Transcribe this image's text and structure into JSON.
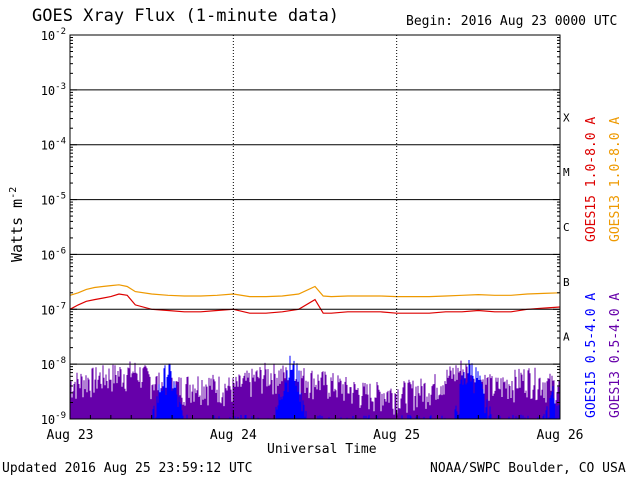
{
  "header": {
    "title": "GOES Xray Flux (1-minute data)",
    "begin": "Begin:  2016 Aug 23 0000 UTC"
  },
  "footer": {
    "updated": "Updated 2016 Aug 25 23:59:12 UTC",
    "credit": "NOAA/SWPC Boulder, CO USA"
  },
  "colors": {
    "goes15_long": "#dd0000",
    "goes13_long": "#ee9900",
    "goes15_short": "#0000ff",
    "goes13_short": "#6600aa"
  },
  "chart_data": {
    "type": "line",
    "title": "GOES Xray Flux (1-minute data)",
    "xlabel": "Universal Time",
    "ylabel": "Watts m",
    "ylabel_sup": "-2",
    "yscale": "log",
    "ylim": [
      1e-09,
      0.01
    ],
    "ytick_labels": [
      {
        "base": "10",
        "exp": "-9",
        "value": 1e-09
      },
      {
        "base": "10",
        "exp": "-8",
        "value": 1e-08
      },
      {
        "base": "10",
        "exp": "-7",
        "value": 1e-07
      },
      {
        "base": "10",
        "exp": "-6",
        "value": 1e-06
      },
      {
        "base": "10",
        "exp": "-5",
        "value": 1e-05
      },
      {
        "base": "10",
        "exp": "-4",
        "value": 0.0001
      },
      {
        "base": "10",
        "exp": "-3",
        "value": 0.001
      },
      {
        "base": "10",
        "exp": "-2",
        "value": 0.01
      }
    ],
    "xticks": [
      "Aug 23",
      "Aug 24",
      "Aug 25",
      "Aug 26"
    ],
    "flare_classes": [
      {
        "label": "A",
        "value": 1e-08
      },
      {
        "label": "B",
        "value": 1e-07
      },
      {
        "label": "C",
        "value": 1e-06
      },
      {
        "label": "M",
        "value": 1e-05
      },
      {
        "label": "X",
        "value": 0.0001
      }
    ],
    "grid": true,
    "legend_position": "right",
    "series": [
      {
        "name": "GOES15 1.0-8.0 A",
        "color": "#dd0000",
        "x": [
          0,
          0.05,
          0.1,
          0.15,
          0.2,
          0.25,
          0.3,
          0.35,
          0.4,
          0.5,
          0.6,
          0.7,
          0.8,
          0.9,
          1.0,
          1.1,
          1.2,
          1.3,
          1.4,
          1.5,
          1.55,
          1.6,
          1.7,
          1.8,
          1.9,
          2.0,
          2.1,
          2.2,
          2.3,
          2.4,
          2.5,
          2.6,
          2.7,
          2.8,
          2.9,
          3.0
        ],
        "values": [
          1e-07,
          1.2e-07,
          1.4e-07,
          1.5e-07,
          1.6e-07,
          1.7e-07,
          1.9e-07,
          1.8e-07,
          1.2e-07,
          1e-07,
          9.5e-08,
          9e-08,
          9e-08,
          9.5e-08,
          1e-07,
          8.5e-08,
          8.5e-08,
          9e-08,
          1e-07,
          1.5e-07,
          8.5e-08,
          8.5e-08,
          9e-08,
          9e-08,
          9e-08,
          8.5e-08,
          8.5e-08,
          8.5e-08,
          9e-08,
          9e-08,
          9.5e-08,
          9e-08,
          9e-08,
          1e-07,
          1.05e-07,
          1.1e-07
        ]
      },
      {
        "name": "GOES13 1.0-8.0 A",
        "color": "#ee9900",
        "x": [
          0,
          0.05,
          0.1,
          0.15,
          0.2,
          0.25,
          0.3,
          0.35,
          0.4,
          0.5,
          0.6,
          0.7,
          0.8,
          0.9,
          1.0,
          1.1,
          1.2,
          1.3,
          1.4,
          1.5,
          1.55,
          1.6,
          1.7,
          1.8,
          1.9,
          2.0,
          2.1,
          2.2,
          2.3,
          2.4,
          2.5,
          2.6,
          2.7,
          2.8,
          2.9,
          3.0
        ],
        "values": [
          1.8e-07,
          2e-07,
          2.3e-07,
          2.5e-07,
          2.6e-07,
          2.7e-07,
          2.8e-07,
          2.6e-07,
          2.1e-07,
          1.9e-07,
          1.8e-07,
          1.75e-07,
          1.75e-07,
          1.8e-07,
          1.9e-07,
          1.7e-07,
          1.7e-07,
          1.75e-07,
          1.9e-07,
          2.6e-07,
          1.75e-07,
          1.7e-07,
          1.75e-07,
          1.75e-07,
          1.75e-07,
          1.7e-07,
          1.7e-07,
          1.7e-07,
          1.75e-07,
          1.8e-07,
          1.85e-07,
          1.8e-07,
          1.8e-07,
          1.9e-07,
          1.95e-07,
          2e-07
        ]
      },
      {
        "name": "GOES15 0.5-4.0 A",
        "color": "#0000ff",
        "x": [
          0.5,
          0.55,
          0.6,
          0.65,
          0.7,
          1.25,
          1.3,
          1.35,
          1.4,
          1.45,
          2.35,
          2.4,
          2.45,
          2.5,
          2.55,
          2.6,
          2.9,
          2.95,
          3.0
        ],
        "values": [
          1e-09,
          5e-09,
          1.1e-08,
          4e-09,
          1e-09,
          1e-09,
          6e-09,
          1.3e-08,
          8e-09,
          1e-09,
          1e-09,
          6e-09,
          1.2e-08,
          7e-09,
          2e-09,
          1e-09,
          1e-09,
          4e-09,
          2e-09
        ]
      },
      {
        "name": "GOES13 0.5-4.0 A",
        "color": "#6600aa",
        "x": [
          0.0,
          0.2,
          0.4,
          0.6,
          0.8,
          1.0,
          1.2,
          1.4,
          1.6,
          1.8,
          2.0,
          2.2,
          2.4,
          2.6,
          2.8,
          3.0
        ],
        "values": [
          6e-09,
          8e-09,
          1e-08,
          5e-09,
          6e-09,
          5e-09,
          9e-09,
          8e-09,
          6e-09,
          4e-09,
          4e-09,
          5e-09,
          1.1e-08,
          5e-09,
          8e-09,
          5e-09
        ]
      }
    ]
  }
}
